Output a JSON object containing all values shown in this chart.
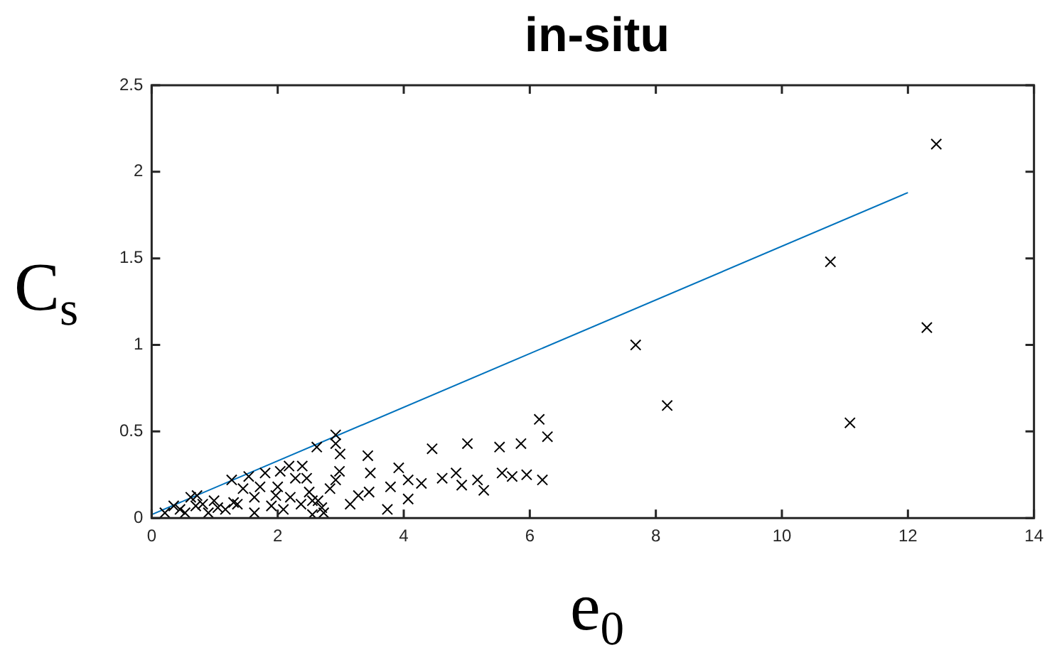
{
  "chart_data": {
    "type": "scatter",
    "title": "in-situ",
    "xlabel": "e$_{0}$",
    "ylabel": "C$_{s}$",
    "xlim": [
      0,
      14
    ],
    "xticks": [
      0,
      2,
      4,
      6,
      8,
      10,
      12,
      14
    ],
    "ylim": [
      0,
      2.5
    ],
    "yticks": [
      0,
      0.5,
      1,
      1.5,
      2,
      2.5
    ],
    "legend": false,
    "series": [
      {
        "marker": "cross",
        "color": "#000000",
        "x": [
          12.45,
          10.77,
          12.3,
          7.68,
          8.18,
          11.08,
          6.15,
          6.28,
          2.92,
          2.92,
          2.62,
          2.99,
          3.43,
          4.45,
          5.01,
          5.52,
          5.86,
          5.56,
          5.72,
          5.95,
          6.2,
          5.17,
          5.27,
          4.92,
          4.83,
          4.61,
          4.28,
          3.92,
          3.79,
          4.07,
          4.07,
          3.47,
          3.74,
          3.45,
          3.28,
          3.15,
          2.98,
          2.92,
          2.83,
          2.73,
          2.55,
          2.46,
          2.39,
          2.18,
          2.04,
          2.28,
          2.0,
          1.8,
          1.54,
          1.27,
          1.97,
          1.63,
          1.36,
          0.99,
          0.62,
          0.72,
          0.35,
          0.53,
          0.9,
          1.17,
          1.63,
          2.09,
          2.37,
          2.64,
          2.55,
          0.21,
          0.81,
          1.45,
          1.72,
          0.45,
          0.7,
          1.05,
          1.3,
          1.9,
          2.2,
          2.5,
          2.7
        ],
        "values": [
          2.16,
          1.48,
          1.1,
          1.0,
          0.65,
          0.55,
          0.57,
          0.47,
          0.48,
          0.43,
          0.41,
          0.37,
          0.36,
          0.4,
          0.43,
          0.41,
          0.43,
          0.26,
          0.24,
          0.25,
          0.22,
          0.22,
          0.16,
          0.19,
          0.26,
          0.23,
          0.2,
          0.29,
          0.18,
          0.22,
          0.11,
          0.26,
          0.05,
          0.15,
          0.13,
          0.08,
          0.27,
          0.22,
          0.17,
          0.03,
          0.1,
          0.23,
          0.3,
          0.3,
          0.27,
          0.23,
          0.18,
          0.26,
          0.24,
          0.22,
          0.13,
          0.12,
          0.08,
          0.1,
          0.12,
          0.13,
          0.07,
          0.03,
          0.03,
          0.05,
          0.03,
          0.05,
          0.08,
          0.1,
          0.02,
          0.03,
          0.08,
          0.17,
          0.18,
          0.05,
          0.07,
          0.06,
          0.09,
          0.07,
          0.12,
          0.15,
          0.06
        ]
      },
      {
        "type": "line",
        "color": "#0072bd",
        "x": [
          0,
          12
        ],
        "values": [
          0.02,
          1.88
        ]
      }
    ]
  }
}
